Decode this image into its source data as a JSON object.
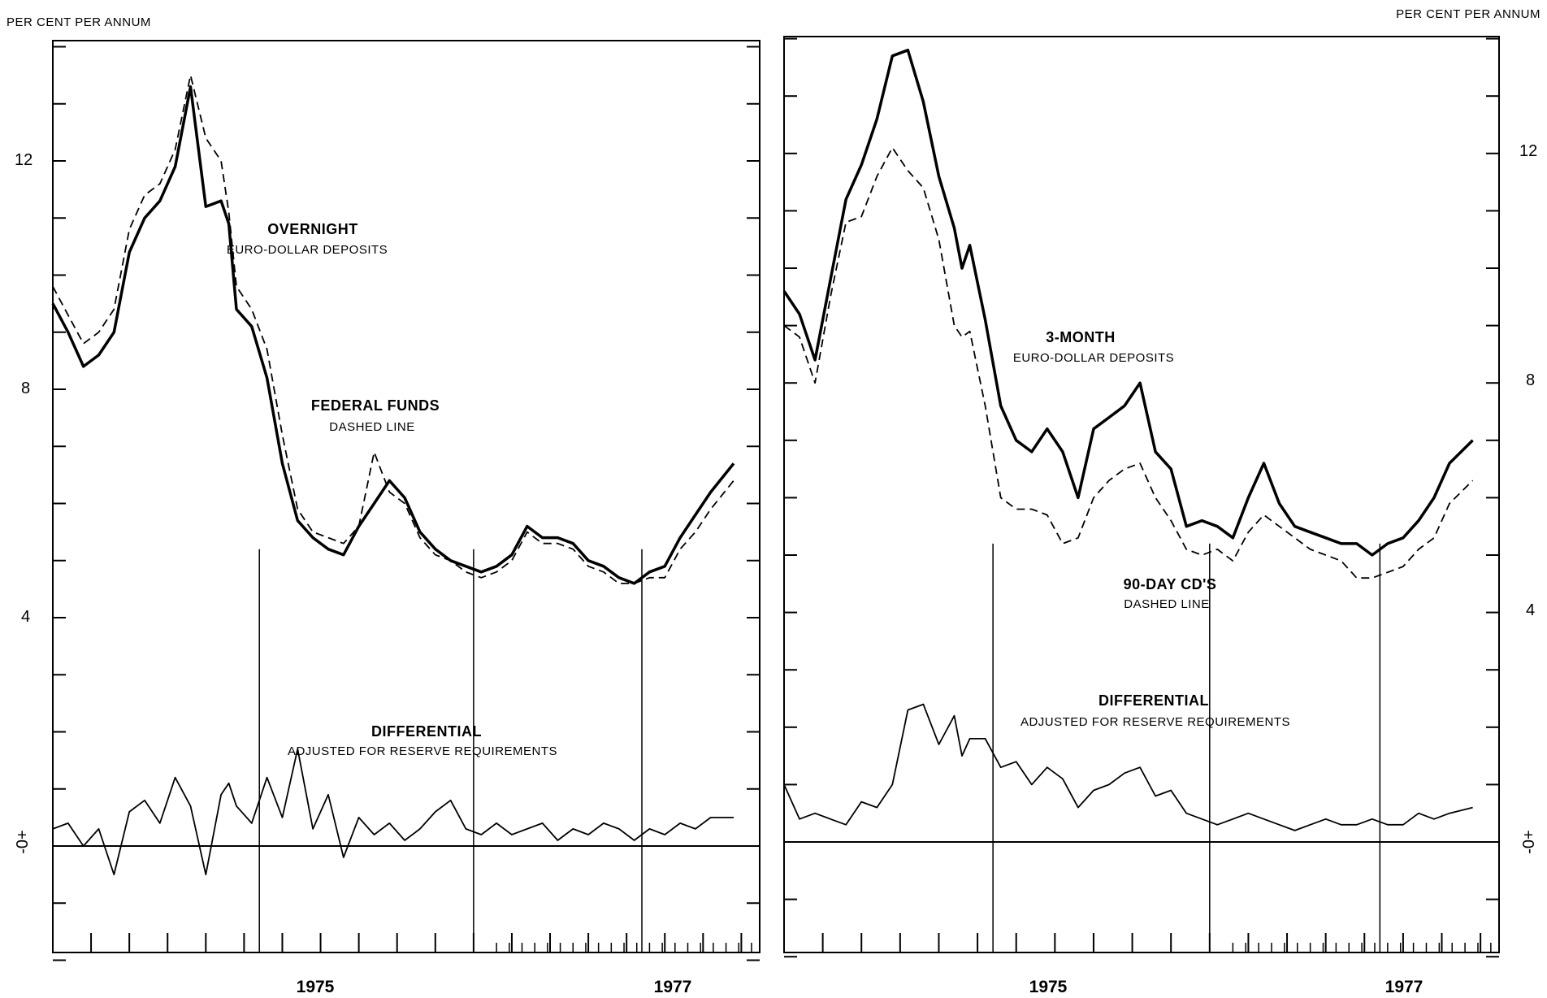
{
  "chart_data": [
    {
      "type": "line",
      "y_unit_label": "PER CENT PER ANNUM",
      "ylim": [
        -2,
        14
      ],
      "y_tick_labels": [
        "12",
        "8",
        "4",
        "0"
      ],
      "zero_marker": "-0+",
      "x_labels": [
        "1975",
        "1977"
      ],
      "annotations": [
        {
          "title": "OVERNIGHT",
          "subtitle": "EURO-DOLLAR DEPOSITS"
        },
        {
          "title": "FEDERAL FUNDS",
          "subtitle": "DASHED LINE"
        },
        {
          "title": "DIFFERENTIAL",
          "subtitle": "ADJUSTED FOR RESERVE REQUIREMENTS"
        }
      ],
      "series": [
        {
          "style": "solid-bold",
          "x": [
            1973.0,
            1973.1,
            1973.2,
            1973.3,
            1973.4,
            1973.5,
            1973.6,
            1973.7,
            1973.8,
            1973.9,
            1974.0,
            1974.1,
            1974.15,
            1974.2,
            1974.3,
            1974.4,
            1974.5,
            1974.6,
            1974.7,
            1974.8,
            1974.9,
            1975.0,
            1975.1,
            1975.2,
            1975.3,
            1975.4,
            1975.5,
            1975.6,
            1975.7,
            1975.8,
            1975.9,
            1976.0,
            1976.1,
            1976.2,
            1976.3,
            1976.4,
            1976.5,
            1976.6,
            1976.7,
            1976.8,
            1976.9,
            1977.0,
            1977.1,
            1977.2,
            1977.3,
            1977.45
          ],
          "values": [
            9.5,
            9.0,
            8.4,
            8.6,
            9.0,
            10.4,
            11.0,
            11.3,
            11.9,
            13.3,
            11.2,
            11.3,
            10.9,
            9.4,
            9.1,
            8.2,
            6.7,
            5.7,
            5.4,
            5.2,
            5.1,
            5.6,
            6.0,
            6.4,
            6.1,
            5.5,
            5.2,
            5.0,
            4.9,
            4.8,
            4.9,
            5.1,
            5.6,
            5.4,
            5.4,
            5.3,
            5.0,
            4.9,
            4.7,
            4.6,
            4.8,
            4.9,
            5.4,
            5.8,
            6.2,
            6.7
          ]
        },
        {
          "style": "dashed",
          "x": [
            1973.0,
            1973.1,
            1973.2,
            1973.3,
            1973.4,
            1973.5,
            1973.6,
            1973.7,
            1973.8,
            1973.9,
            1974.0,
            1974.1,
            1974.15,
            1974.2,
            1974.3,
            1974.4,
            1974.5,
            1974.6,
            1974.7,
            1974.8,
            1974.9,
            1975.0,
            1975.1,
            1975.2,
            1975.3,
            1975.4,
            1975.5,
            1975.6,
            1975.7,
            1975.8,
            1975.9,
            1976.0,
            1976.1,
            1976.2,
            1976.3,
            1976.4,
            1976.5,
            1976.6,
            1976.7,
            1976.8,
            1976.9,
            1977.0,
            1977.1,
            1977.2,
            1977.3,
            1977.45
          ],
          "values": [
            9.8,
            9.3,
            8.8,
            9.0,
            9.4,
            10.8,
            11.4,
            11.6,
            12.2,
            13.5,
            12.4,
            12.0,
            11.1,
            9.8,
            9.4,
            8.7,
            7.2,
            5.9,
            5.5,
            5.4,
            5.3,
            5.6,
            6.9,
            6.2,
            6.0,
            5.4,
            5.1,
            5.0,
            4.8,
            4.7,
            4.8,
            5.0,
            5.5,
            5.3,
            5.3,
            5.2,
            4.9,
            4.8,
            4.6,
            4.6,
            4.7,
            4.7,
            5.2,
            5.5,
            5.9,
            6.4
          ]
        },
        {
          "style": "solid-thin",
          "x": [
            1973.0,
            1973.1,
            1973.2,
            1973.3,
            1973.4,
            1973.5,
            1973.6,
            1973.7,
            1973.8,
            1973.9,
            1974.0,
            1974.1,
            1974.15,
            1974.2,
            1974.3,
            1974.4,
            1974.5,
            1974.6,
            1974.7,
            1974.8,
            1974.9,
            1975.0,
            1975.1,
            1975.2,
            1975.3,
            1975.4,
            1975.5,
            1975.6,
            1975.7,
            1975.8,
            1975.9,
            1976.0,
            1976.1,
            1976.2,
            1976.3,
            1976.4,
            1976.5,
            1976.6,
            1976.7,
            1976.8,
            1976.9,
            1977.0,
            1977.1,
            1977.2,
            1977.3,
            1977.45
          ],
          "values": [
            0.3,
            0.4,
            0.0,
            0.3,
            -0.5,
            0.6,
            0.8,
            0.4,
            1.2,
            0.7,
            -0.5,
            0.9,
            1.1,
            0.7,
            0.4,
            1.2,
            0.5,
            1.7,
            0.3,
            0.9,
            -0.2,
            0.5,
            0.2,
            0.4,
            0.1,
            0.3,
            0.6,
            0.8,
            0.3,
            0.2,
            0.4,
            0.2,
            0.3,
            0.4,
            0.1,
            0.3,
            0.2,
            0.4,
            0.3,
            0.1,
            0.3,
            0.2,
            0.4,
            0.3,
            0.5,
            0.5
          ]
        }
      ]
    },
    {
      "type": "line",
      "y_unit_label": "PER CENT PER ANNUM",
      "ylim": [
        -2,
        14
      ],
      "y_tick_labels": [
        "12",
        "8",
        "4",
        "0"
      ],
      "zero_marker": "-0+",
      "x_labels": [
        "1975",
        "1977"
      ],
      "annotations": [
        {
          "title": "3-MONTH",
          "subtitle": "EURO-DOLLAR DEPOSITS"
        },
        {
          "title": "90-DAY CD'S",
          "subtitle": "DASHED LINE"
        },
        {
          "title": "DIFFERENTIAL",
          "subtitle": "ADJUSTED FOR RESERVE REQUIREMENTS"
        }
      ],
      "series": [
        {
          "style": "solid-bold",
          "x": [
            1973.0,
            1973.1,
            1973.2,
            1973.3,
            1973.4,
            1973.5,
            1973.6,
            1973.7,
            1973.8,
            1973.9,
            1974.0,
            1974.1,
            1974.15,
            1974.2,
            1974.3,
            1974.4,
            1974.5,
            1974.6,
            1974.7,
            1974.8,
            1974.9,
            1975.0,
            1975.1,
            1975.2,
            1975.3,
            1975.4,
            1975.5,
            1975.6,
            1975.7,
            1975.8,
            1975.9,
            1976.0,
            1976.1,
            1976.2,
            1976.3,
            1976.4,
            1976.5,
            1976.6,
            1976.7,
            1976.8,
            1976.9,
            1977.0,
            1977.1,
            1977.2,
            1977.3,
            1977.45
          ],
          "values": [
            9.6,
            9.2,
            8.4,
            9.8,
            11.2,
            11.8,
            12.6,
            13.7,
            13.8,
            12.9,
            11.6,
            10.7,
            10.0,
            10.4,
            9.1,
            7.6,
            7.0,
            6.8,
            7.2,
            6.8,
            6.0,
            7.2,
            7.4,
            7.6,
            8.0,
            6.8,
            6.5,
            5.5,
            5.6,
            5.5,
            5.3,
            6.0,
            6.6,
            5.9,
            5.5,
            5.4,
            5.3,
            5.2,
            5.2,
            5.0,
            5.2,
            5.3,
            5.6,
            6.0,
            6.6,
            7.0
          ]
        },
        {
          "style": "dashed",
          "x": [
            1973.0,
            1973.1,
            1973.2,
            1973.3,
            1973.4,
            1973.5,
            1973.6,
            1973.7,
            1973.8,
            1973.9,
            1974.0,
            1974.1,
            1974.15,
            1974.2,
            1974.3,
            1974.4,
            1974.5,
            1974.6,
            1974.7,
            1974.8,
            1974.9,
            1975.0,
            1975.1,
            1975.2,
            1975.3,
            1975.4,
            1975.5,
            1975.6,
            1975.7,
            1975.8,
            1975.9,
            1976.0,
            1976.1,
            1976.2,
            1976.3,
            1976.4,
            1976.5,
            1976.6,
            1976.7,
            1976.8,
            1976.9,
            1977.0,
            1977.1,
            1977.2,
            1977.3,
            1977.45
          ],
          "values": [
            9.0,
            8.8,
            8.0,
            9.5,
            10.8,
            10.9,
            11.6,
            12.1,
            11.7,
            11.4,
            10.5,
            9.0,
            8.8,
            8.9,
            7.6,
            6.0,
            5.8,
            5.8,
            5.7,
            5.2,
            5.3,
            6.0,
            6.3,
            6.5,
            6.6,
            6.0,
            5.6,
            5.1,
            5.0,
            5.1,
            4.9,
            5.4,
            5.7,
            5.5,
            5.3,
            5.1,
            5.0,
            4.9,
            4.6,
            4.6,
            4.7,
            4.8,
            5.1,
            5.3,
            5.9,
            6.3
          ]
        },
        {
          "style": "solid-thin",
          "x": [
            1973.0,
            1973.1,
            1973.2,
            1973.3,
            1973.4,
            1973.5,
            1973.6,
            1973.7,
            1973.8,
            1973.9,
            1974.0,
            1974.1,
            1974.15,
            1974.2,
            1974.3,
            1974.4,
            1974.5,
            1974.6,
            1974.7,
            1974.8,
            1974.9,
            1975.0,
            1975.1,
            1975.2,
            1975.3,
            1975.4,
            1975.5,
            1975.6,
            1975.7,
            1975.8,
            1975.9,
            1976.0,
            1976.1,
            1976.2,
            1976.3,
            1976.4,
            1976.5,
            1976.6,
            1976.7,
            1976.8,
            1976.9,
            1977.0,
            1977.1,
            1977.2,
            1977.3,
            1977.45
          ],
          "values": [
            1.0,
            0.4,
            0.5,
            0.4,
            0.3,
            0.7,
            0.6,
            1.0,
            2.3,
            2.4,
            1.7,
            2.2,
            1.5,
            1.8,
            1.8,
            1.3,
            1.4,
            1.0,
            1.3,
            1.1,
            0.6,
            0.9,
            1.0,
            1.2,
            1.3,
            0.8,
            0.9,
            0.5,
            0.4,
            0.3,
            0.4,
            0.5,
            0.4,
            0.3,
            0.2,
            0.3,
            0.4,
            0.3,
            0.3,
            0.4,
            0.3,
            0.3,
            0.5,
            0.4,
            0.5,
            0.6
          ]
        }
      ]
    }
  ]
}
